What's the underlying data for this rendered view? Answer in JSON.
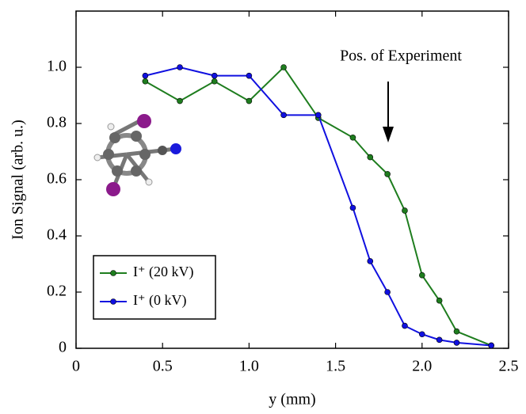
{
  "chart_data": {
    "type": "line",
    "x_label": "y (mm)",
    "y_label": "Ion Signal (arb. u.)",
    "annotation": "Pos. of Experiment",
    "x": [
      0.4,
      0.6,
      0.8,
      1.0,
      1.2,
      1.4,
      1.6,
      1.7,
      1.8,
      1.9,
      2.0,
      2.1,
      2.2,
      2.4
    ],
    "series": [
      {
        "name": "I⁺ (20 kV)",
        "color": "#1e7d1e",
        "values": [
          0.95,
          0.88,
          0.95,
          0.88,
          1.0,
          0.82,
          0.75,
          0.68,
          0.62,
          0.49,
          0.26,
          0.17,
          0.06,
          0.01
        ]
      },
      {
        "name": "I⁺ (0 kV)",
        "color": "#1010e0",
        "values": [
          0.97,
          1.0,
          0.97,
          0.97,
          0.83,
          0.83,
          0.5,
          0.31,
          0.2,
          0.08,
          0.05,
          0.03,
          0.02,
          0.01
        ]
      }
    ],
    "xlim": [
      0,
      2.5
    ],
    "ylim": [
      0,
      1.2
    ],
    "xticks": [
      0,
      0.5,
      {
        "value": 1,
        "label": "1.0"
      },
      1.5,
      {
        "value": 2,
        "label": "2.0"
      },
      2.5
    ],
    "yticks": [
      0,
      0.2,
      0.4,
      0.6,
      0.8,
      {
        "value": 1,
        "label": "1.0"
      }
    ],
    "legend": "lower left"
  }
}
